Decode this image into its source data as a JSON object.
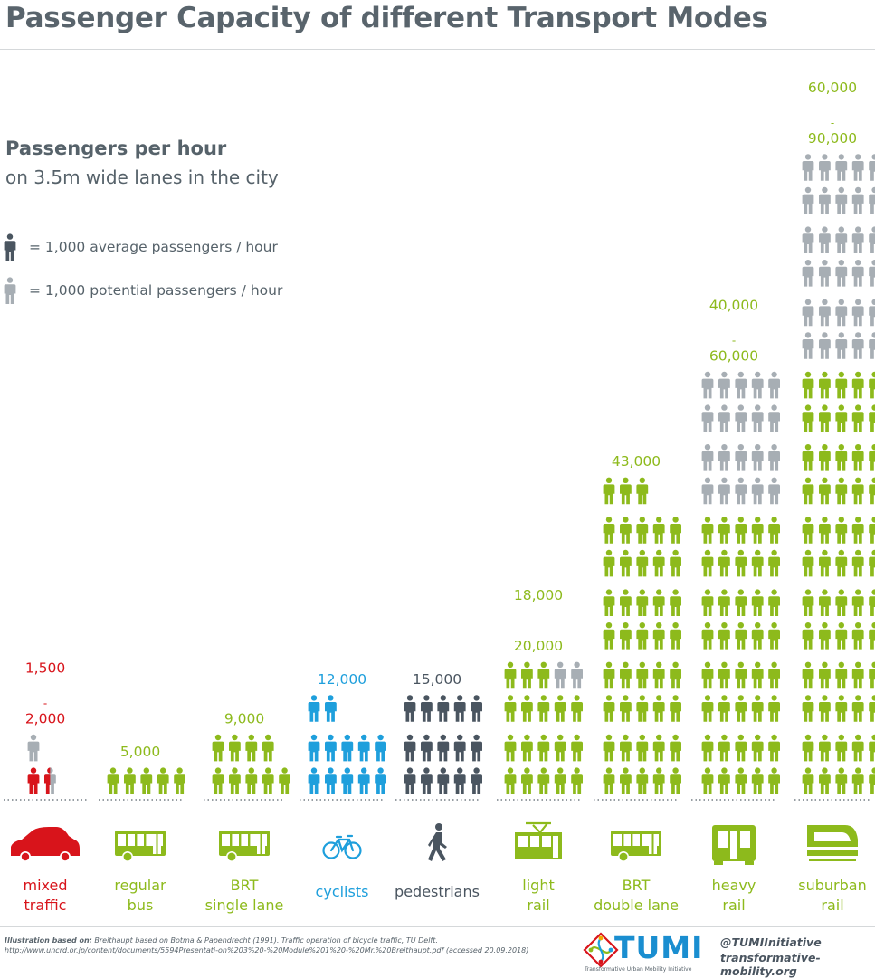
{
  "title": "Passenger Capacity of different Transport Modes",
  "subtitle": "Passengers per hour",
  "subtitle2": "on 3.5m wide lanes in the city",
  "legend": {
    "average": "= 1,000 average passengers / hour",
    "potential": "= 1,000 potential passengers / hour"
  },
  "colors": {
    "red": "#d8141b",
    "green": "#8dba1c",
    "blue": "#1e9fdc",
    "dark": "#4a5560",
    "gray": "#a7aeb4"
  },
  "chart_data": {
    "type": "pictogram",
    "unit": "1,000 passengers / hour per figure",
    "categories": [
      {
        "label": [
          "mixed",
          "traffic"
        ],
        "icon": "car-icon",
        "color": "red",
        "average": 1.5,
        "potential": 0.5,
        "value_label": [
          "1,500",
          "-",
          "2,000"
        ]
      },
      {
        "label": [
          "regular",
          "bus"
        ],
        "icon": "bus-icon",
        "color": "green",
        "average": 5,
        "potential": 0,
        "value_label": [
          "5,000"
        ]
      },
      {
        "label": [
          "BRT",
          "single  lane"
        ],
        "icon": "brt-bus-icon",
        "color": "green",
        "average": 9,
        "potential": 0,
        "value_label": [
          "9,000"
        ]
      },
      {
        "label": [
          "cyclists"
        ],
        "icon": "bicycle-icon",
        "color": "blue",
        "average": 12,
        "potential": 0,
        "value_label": [
          "12,000"
        ]
      },
      {
        "label": [
          "pedestrians"
        ],
        "icon": "pedestrian-icon",
        "color": "dark",
        "average": 15,
        "potential": 0,
        "value_label": [
          "15,000"
        ]
      },
      {
        "label": [
          "light",
          "rail"
        ],
        "icon": "tram-icon",
        "color": "green",
        "average": 18,
        "potential": 2,
        "value_label": [
          "18,000",
          "-",
          "20,000"
        ]
      },
      {
        "label": [
          "BRT",
          "double lane"
        ],
        "icon": "brt-double-bus-icon",
        "color": "green",
        "average": 43,
        "potential": 0,
        "value_label": [
          "43,000"
        ]
      },
      {
        "label": [
          "heavy",
          "rail"
        ],
        "icon": "train-icon",
        "color": "green",
        "average": 40,
        "potential": 20,
        "value_label": [
          "40,000",
          "-",
          "60,000"
        ]
      },
      {
        "label": [
          "suburban",
          "rail"
        ],
        "icon": "suburban-train-icon",
        "color": "green",
        "average": 60,
        "potential": 30,
        "value_label": [
          "60,000",
          "-",
          "90,000"
        ]
      }
    ]
  },
  "footer": {
    "source_label": "Illustration based on:",
    "source_text": "Breithaupt based on Botma & Papendrecht (1991). Traffic operation of bicycle traffic, TU Delft. http://www.uncrd.or.jp/content/documents/5594Presentati-on%203%20-%20Module%201%20-%20Mr.%20Breithaupt.pdf (accessed 20.09.2018)",
    "logo_word": "TUMI",
    "logo_sub": "Transformative Urban Mobility Initiative",
    "handle": "@TUMIInitiative",
    "website": "transformative-mobility.org"
  }
}
